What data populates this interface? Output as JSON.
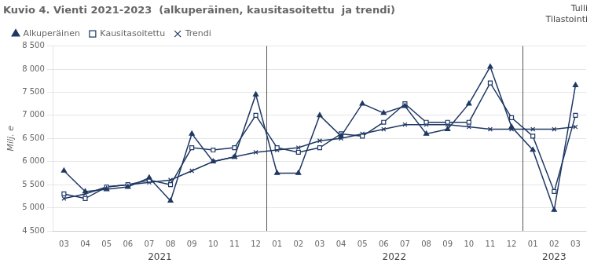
{
  "chart_data": {
    "type": "line",
    "title": "Kuvio 4. Vienti 2021-2023  (alkuperäinen, kausitasoitettu  ja trendi)",
    "y_label": "Milj. e",
    "categories": [
      "03",
      "04",
      "05",
      "06",
      "07",
      "08",
      "09",
      "10",
      "11",
      "12",
      "01",
      "02",
      "03",
      "04",
      "05",
      "06",
      "07",
      "08",
      "09",
      "10",
      "11",
      "12",
      "01",
      "02",
      "03"
    ],
    "series": [
      {
        "name": "Alkuperäinen",
        "color": "#1F3864",
        "marker": "triangle",
        "values": [
          5800,
          5350,
          5400,
          5450,
          5650,
          5150,
          6600,
          6000,
          6100,
          7450,
          5750,
          5750,
          7000,
          6550,
          7250,
          7050,
          7200,
          6600,
          6700,
          7250,
          8050,
          6750,
          6250,
          4950,
          7650
        ]
      },
      {
        "name": "Kausitasoitettu",
        "color": "#1F3864",
        "marker": "square",
        "values": [
          5300,
          5200,
          5450,
          5500,
          5600,
          5500,
          6300,
          6250,
          6300,
          7000,
          6300,
          6200,
          6300,
          6600,
          6550,
          6850,
          7250,
          6850,
          6850,
          6850,
          7700,
          6950,
          6550,
          5350,
          7000
        ]
      },
      {
        "name": "Trendi",
        "color": "#1F3864",
        "marker": "x",
        "values": [
          5200,
          5300,
          5450,
          5500,
          5550,
          5600,
          5800,
          6000,
          6100,
          6200,
          6250,
          6300,
          6450,
          6500,
          6600,
          6700,
          6800,
          6800,
          6800,
          6750,
          6700,
          6700,
          6700,
          6700,
          6750
        ]
      }
    ],
    "ylim": [
      4500,
      8500
    ],
    "yticks": [
      {
        "value": 4500,
        "label": "4 500"
      },
      {
        "value": 5000,
        "label": "5 000"
      },
      {
        "value": 5500,
        "label": "5 500"
      },
      {
        "value": 6000,
        "label": "6 000"
      },
      {
        "value": 6500,
        "label": "6 500"
      },
      {
        "value": 7000,
        "label": "7 000"
      },
      {
        "value": 7500,
        "label": "7 500"
      },
      {
        "value": 8000,
        "label": "8 000"
      },
      {
        "value": 8500,
        "label": "8 500"
      }
    ],
    "annotations": [
      {
        "text": "2021",
        "x": 4.5
      },
      {
        "text": "2022",
        "x": 15.5
      },
      {
        "text": "2023",
        "x": 23.0
      },
      {
        "text": "Tulli"
      },
      {
        "text": "Tilastointi"
      }
    ],
    "grid": true,
    "legend": "upper left"
  }
}
